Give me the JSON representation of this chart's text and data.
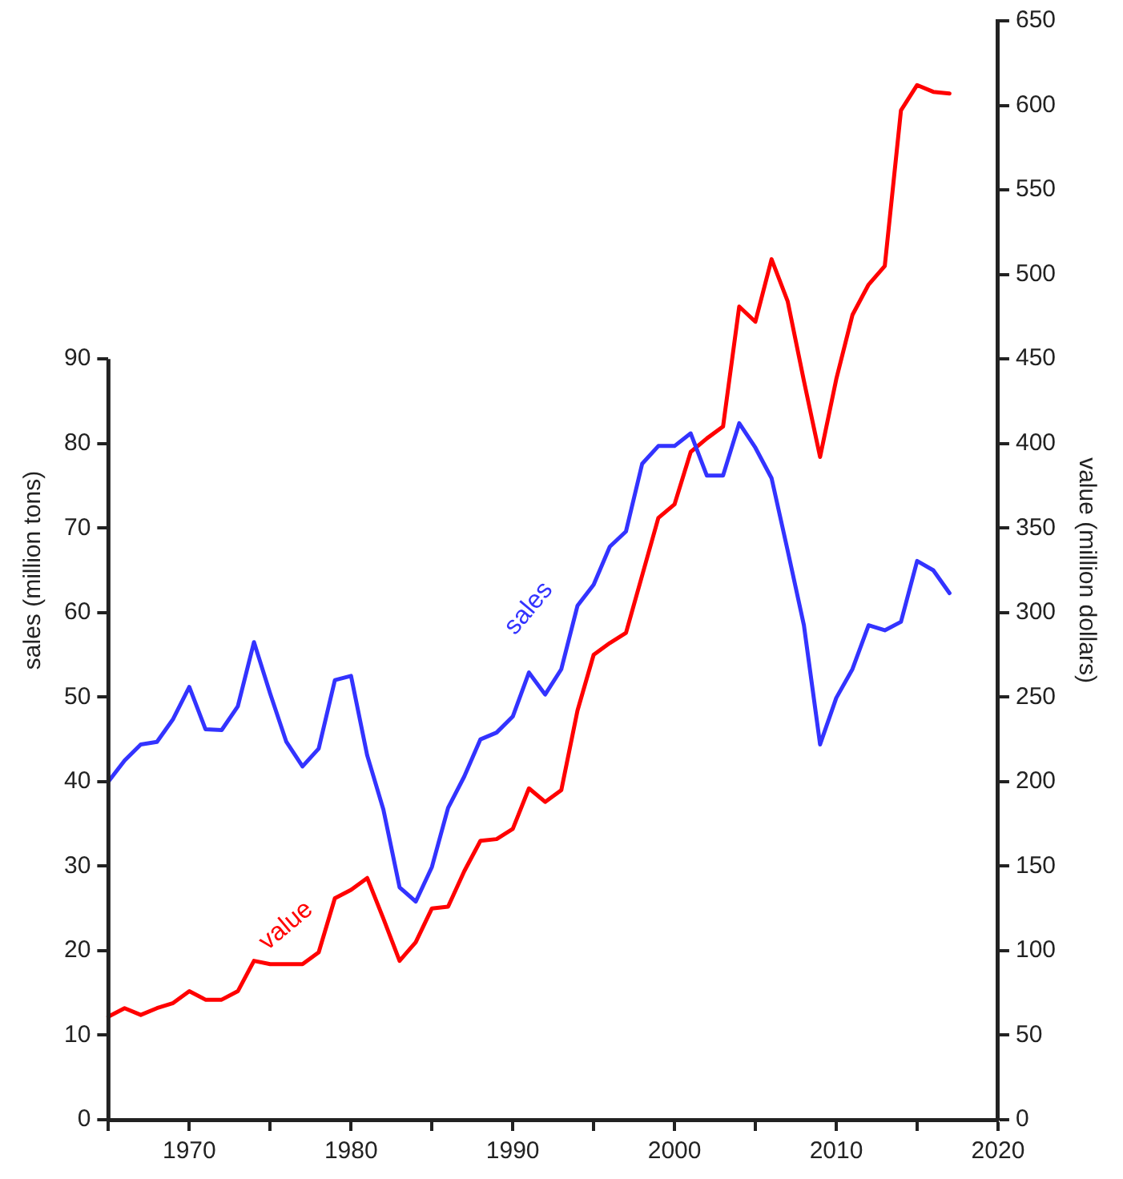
{
  "chart_data": {
    "type": "line",
    "ylabel": "sales (million tons)",
    "y2label": "value (million dollars)",
    "x": [
      1965,
      1966,
      1967,
      1968,
      1969,
      1970,
      1971,
      1972,
      1973,
      1974,
      1975,
      1976,
      1977,
      1978,
      1979,
      1980,
      1981,
      1982,
      1983,
      1984,
      1985,
      1986,
      1987,
      1988,
      1989,
      1990,
      1991,
      1992,
      1993,
      1994,
      1995,
      1996,
      1997,
      1998,
      1999,
      2000,
      2001,
      2002,
      2003,
      2004,
      2005,
      2006,
      2007,
      2008,
      2009,
      2010,
      2011,
      2012,
      2013,
      2014,
      2015,
      2016,
      2017
    ],
    "series": [
      {
        "name": "sales",
        "color": "#3333ff",
        "values": [
          40,
          42.5,
          44.4,
          44.7,
          47.4,
          51.2,
          46.2,
          46.1,
          48.9,
          56.5,
          50.4,
          44.7,
          41.8,
          43.9,
          52,
          52.5,
          43.1,
          36.7,
          27.5,
          25.8,
          29.9,
          36.9,
          40.6,
          45,
          45.8,
          47.7,
          52.9,
          50.3,
          53.3,
          60.8,
          63.3,
          67.8,
          69.6,
          77.6,
          79.7,
          79.7,
          81.2,
          76.2,
          76.2,
          82.4,
          79.5,
          75.9,
          67.3,
          58.5,
          44.4,
          49.9,
          53.3,
          58.5,
          57.9,
          58.9,
          66.1,
          65,
          62.3
        ]
      },
      {
        "name": "value",
        "color": "#ff0000",
        "axis": "y2",
        "values": [
          61,
          66,
          62,
          66,
          69,
          76,
          71,
          71,
          76,
          94,
          92,
          92,
          92,
          99,
          131,
          136,
          143,
          119,
          94,
          105,
          125,
          126,
          147,
          165,
          166,
          172,
          196,
          188,
          195,
          242,
          275,
          282,
          288,
          322,
          356,
          364,
          395,
          403,
          410,
          481,
          472,
          509,
          484,
          437,
          392,
          438,
          476,
          494,
          505,
          597,
          612,
          608,
          607
        ]
      }
    ],
    "xlim": [
      1965,
      2020
    ],
    "xticks": [
      {
        "value": 1965,
        "label": null
      },
      1970,
      {
        "value": 1975,
        "label": null
      },
      1980,
      {
        "value": 1985,
        "label": null
      },
      1990,
      {
        "value": 1995,
        "label": null
      },
      2000,
      {
        "value": 2005,
        "label": null
      },
      2010,
      {
        "value": 2015,
        "label": null
      },
      2020
    ],
    "ylim": [
      0,
      130
    ],
    "yticks": [
      0,
      10,
      20,
      30,
      40,
      50,
      60,
      70,
      80,
      90
    ],
    "y2lim": [
      0,
      650
    ],
    "y2ticks": [
      0,
      50,
      100,
      150,
      200,
      250,
      300,
      350,
      400,
      450,
      500,
      550,
      600,
      650
    ],
    "grid": false,
    "legend": false,
    "marker": "none",
    "line_style": "solid"
  }
}
